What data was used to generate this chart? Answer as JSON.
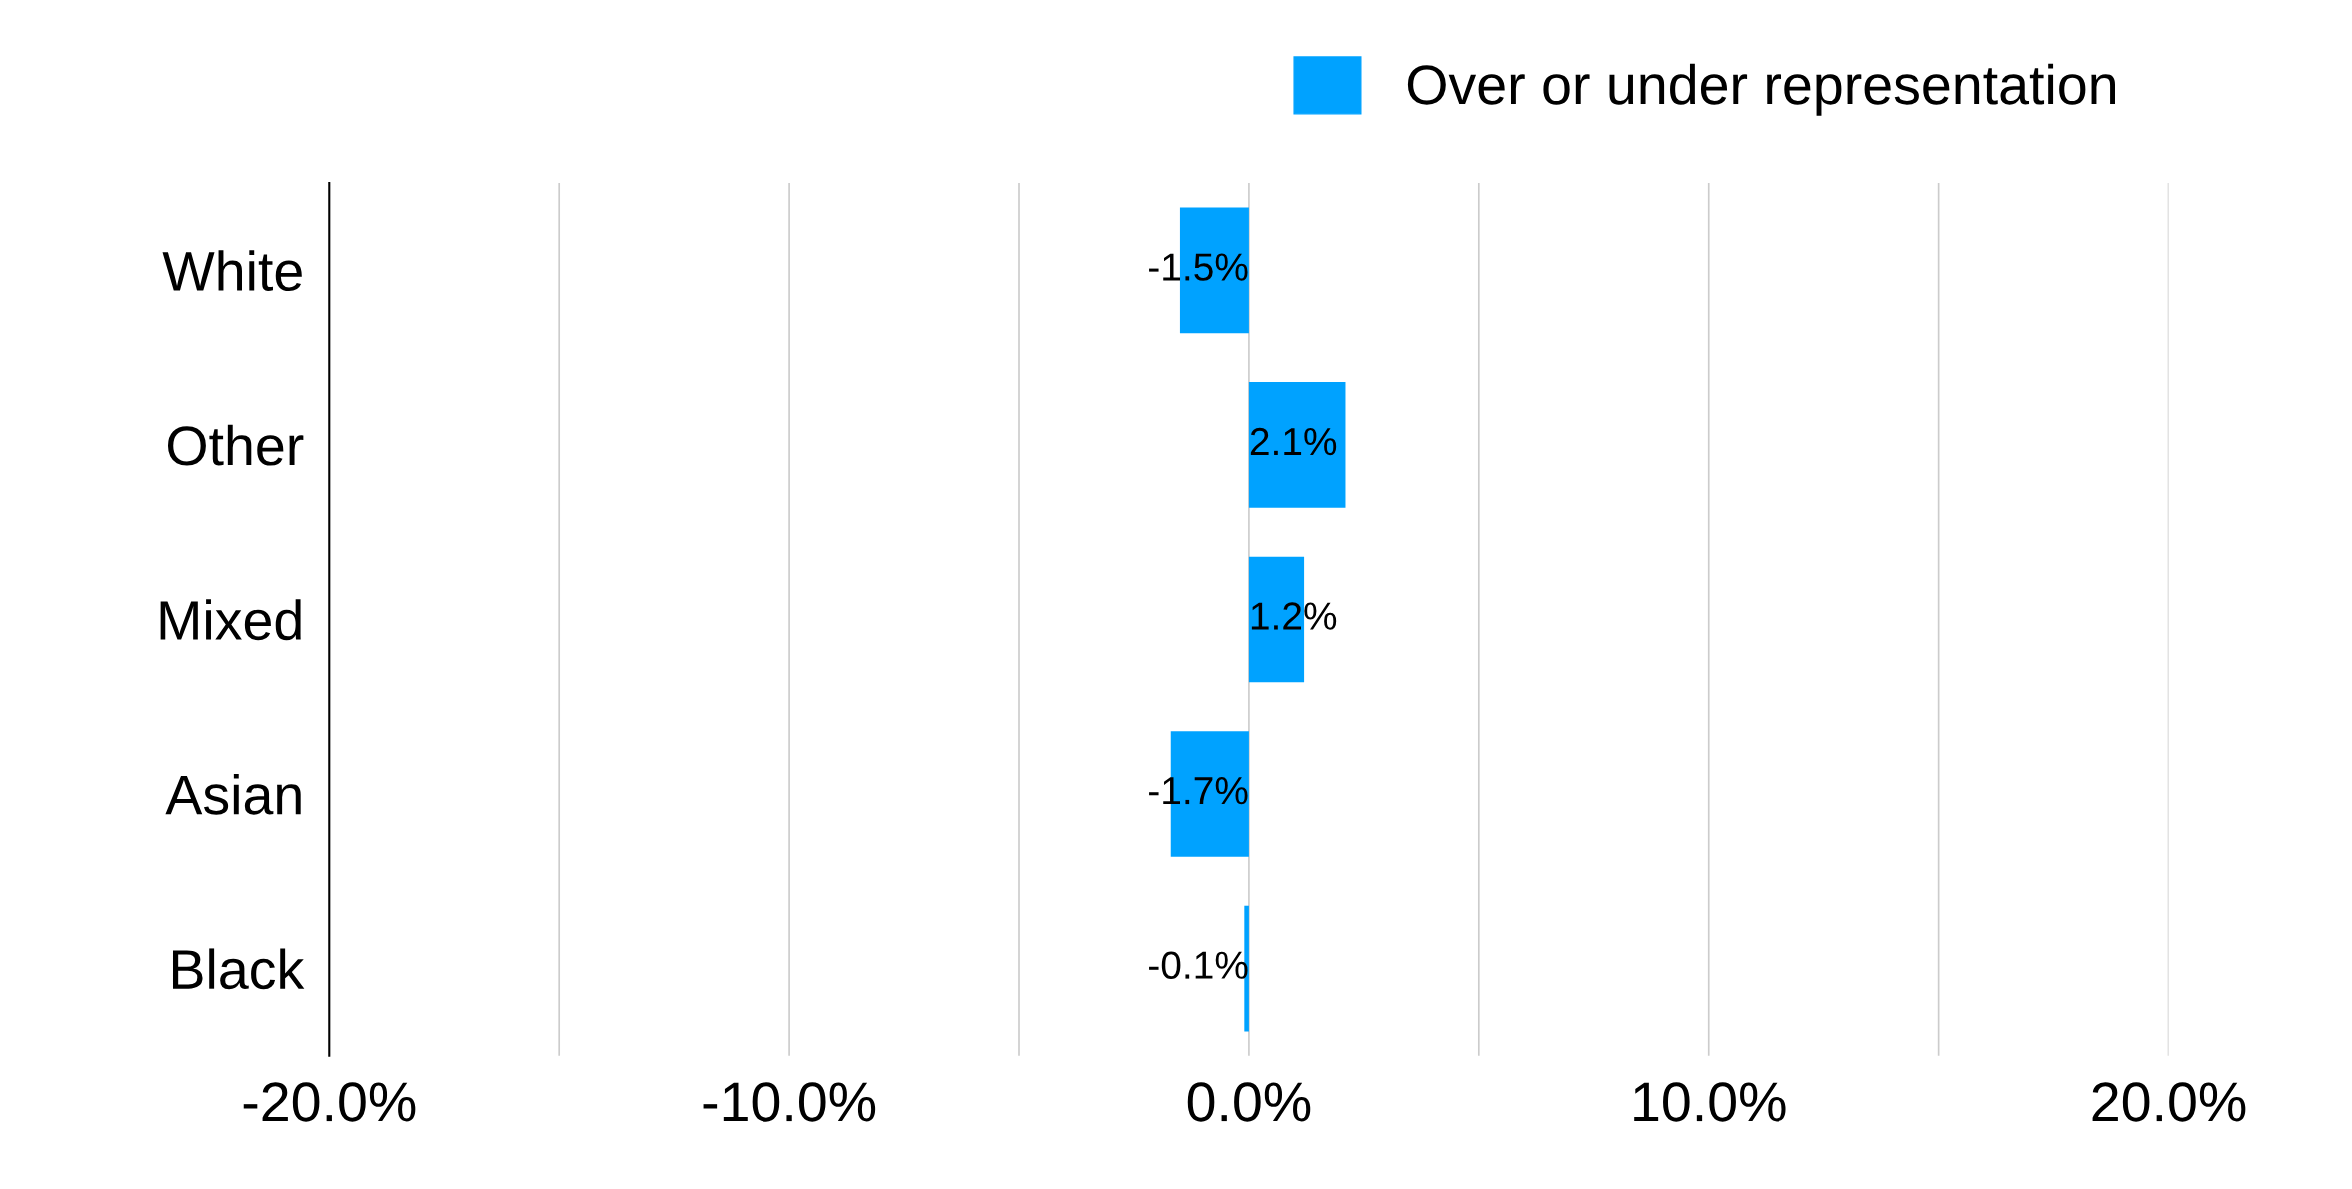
{
  "chart_data": {
    "type": "bar",
    "orientation": "horizontal",
    "categories": [
      "White",
      "Other",
      "Mixed",
      "Asian",
      "Black"
    ],
    "series": [
      {
        "name": "Over or under representation",
        "color": "#00a2ff",
        "values": [
          -1.5,
          2.1,
          1.2,
          -1.7,
          -0.1
        ],
        "value_labels": [
          "-1.5%",
          "2.1%",
          "1.2%",
          "-1.7%",
          "-0.1%"
        ]
      }
    ],
    "xlim": [
      -20,
      20
    ],
    "xticks": [
      {
        "value": -20,
        "label": "-20.0%"
      },
      {
        "value": -15,
        "label": null
      },
      {
        "value": -10,
        "label": "-10.0%"
      },
      {
        "value": -5,
        "label": null
      },
      {
        "value": 0,
        "label": "0.0%"
      },
      {
        "value": 5,
        "label": null
      },
      {
        "value": 10,
        "label": "10.0%"
      },
      {
        "value": 15,
        "label": null
      },
      {
        "value": 20,
        "label": "20.0%"
      }
    ],
    "grid": "x",
    "legend": "top right"
  }
}
